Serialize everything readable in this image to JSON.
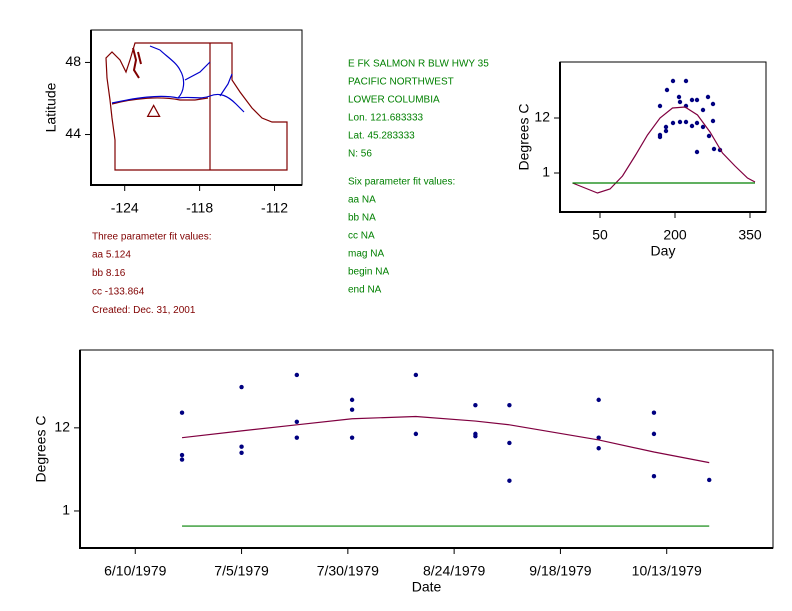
{
  "site": {
    "name": "E FK SALMON R BLW HWY 35",
    "region": "PACIFIC NORTHWEST",
    "basin": "LOWER COLUMBIA",
    "lon": "Lon. 121.683333",
    "lat": "Lat. 45.283333",
    "n": "N: 56"
  },
  "six_parameter_fit": {
    "heading": "Six parameter fit values:",
    "lines": [
      "aa NA",
      "bb NA",
      "cc NA",
      "mag NA",
      "begin NA",
      "end NA"
    ]
  },
  "three_parameter_fit": {
    "heading": "Three parameter fit values:",
    "lines": [
      "aa 5.124",
      "bb 8.16",
      "cc -133.864",
      "Created:   Dec. 31, 2001"
    ]
  },
  "chart_data": [
    {
      "type": "map",
      "ylabel": "Latitude",
      "xlim": [
        -126.7,
        -109.8
      ],
      "ylim": [
        41.2,
        49.8
      ],
      "xticks": [
        -124,
        -118,
        -112
      ],
      "yticks": [
        48,
        44
      ],
      "x": [
        -121.683333
      ],
      "values": [
        45.283333
      ],
      "color": "#800000"
    },
    {
      "type": "combo",
      "xlabel": "Day",
      "ylabel": "Degrees C",
      "xlim": [
        -30,
        382
      ],
      "ylim": [
        -6.8,
        23.2
      ],
      "xticks": [
        50,
        200,
        350
      ],
      "yticks": [
        1,
        12
      ],
      "series": [
        {
          "type": "scatter",
          "color": "#000080",
          "x": [
            170,
            170,
            170,
            182,
            182,
            184,
            196,
            196,
            208,
            210,
            210,
            222,
            222,
            222,
            234,
            234,
            244,
            244,
            244,
            256,
            256,
            266,
            268,
            276,
            276,
            278,
            290
          ],
          "values": [
            14.4,
            8.6,
            8.2,
            10.2,
            9.4,
            17.6,
            19.4,
            11.0,
            16.2,
            15.2,
            11.2,
            19.4,
            14.4,
            11.2,
            15.6,
            10.4,
            15.6,
            11.0,
            5.2,
            13.6,
            10.2,
            16.2,
            8.4,
            14.8,
            11.4,
            5.8,
            5.6
          ]
        },
        {
          "type": "line",
          "color": "#800040",
          "x": [
            -5,
            20,
            45,
            70,
            95,
            120,
            145,
            170,
            195,
            220,
            245,
            270,
            295,
            320,
            345,
            360
          ],
          "values": [
            -1.0,
            -2.0,
            -3.0,
            -2.2,
            0.4,
            4.4,
            8.6,
            12.0,
            14.0,
            14.2,
            12.6,
            9.2,
            5.0,
            2.4,
            0.0,
            -0.8
          ]
        },
        {
          "type": "line",
          "color": "#008000",
          "x": [
            -5,
            360
          ],
          "values": [
            -1,
            -1
          ]
        }
      ]
    },
    {
      "type": "combo",
      "xlabel": "Date",
      "ylabel": "Degrees C",
      "xlim": [
        "1979-05-28",
        "1979-11-07"
      ],
      "ylim": [
        -3.9,
        22.3
      ],
      "xticks": [
        {
          "value": "1979-06-10",
          "label": "6/10/1979"
        },
        {
          "value": "1979-07-05",
          "label": "7/5/1979"
        },
        {
          "value": "1979-07-30",
          "label": "7/30/1979"
        },
        {
          "value": "1979-08-24",
          "label": "8/24/1979"
        },
        {
          "value": "1979-09-18",
          "label": "9/18/1979"
        },
        {
          "value": "1979-10-13",
          "label": "10/13/1979"
        }
      ],
      "yticks": [
        1,
        12
      ],
      "series": [
        {
          "type": "scatter",
          "color": "#000080",
          "x": [
            "1979-06-21",
            "1979-06-21",
            "1979-06-21",
            "1979-07-05",
            "1979-07-05",
            "1979-07-05",
            "1979-07-18",
            "1979-07-18",
            "1979-07-18",
            "1979-07-31",
            "1979-07-31",
            "1979-07-31",
            "1979-08-15",
            "1979-08-15",
            "1979-08-29",
            "1979-08-29",
            "1979-08-29",
            "1979-09-06",
            "1979-09-06",
            "1979-09-06",
            "1979-09-27",
            "1979-09-27",
            "1979-09-27",
            "1979-10-10",
            "1979-10-10",
            "1979-10-10",
            "1979-10-23"
          ],
          "values": [
            14.0,
            8.4,
            7.8,
            17.4,
            9.5,
            8.7,
            19.0,
            12.8,
            10.7,
            15.7,
            14.4,
            10.7,
            19.0,
            11.2,
            15.0,
            11.2,
            10.9,
            15.0,
            10.0,
            5.0,
            15.7,
            10.7,
            9.3,
            14.0,
            11.2,
            5.6,
            5.1
          ]
        },
        {
          "type": "line",
          "color": "#800040",
          "x": [
            "1979-06-21",
            "1979-07-05",
            "1979-07-18",
            "1979-07-31",
            "1979-08-15",
            "1979-08-29",
            "1979-09-06",
            "1979-09-27",
            "1979-10-10",
            "1979-10-23"
          ],
          "values": [
            10.7,
            11.6,
            12.4,
            13.2,
            13.5,
            12.9,
            12.4,
            10.4,
            8.8,
            7.4
          ]
        },
        {
          "type": "line",
          "color": "#008000",
          "x": [
            "1979-06-21",
            "1979-10-23"
          ],
          "values": [
            -1,
            -1
          ]
        }
      ]
    }
  ]
}
